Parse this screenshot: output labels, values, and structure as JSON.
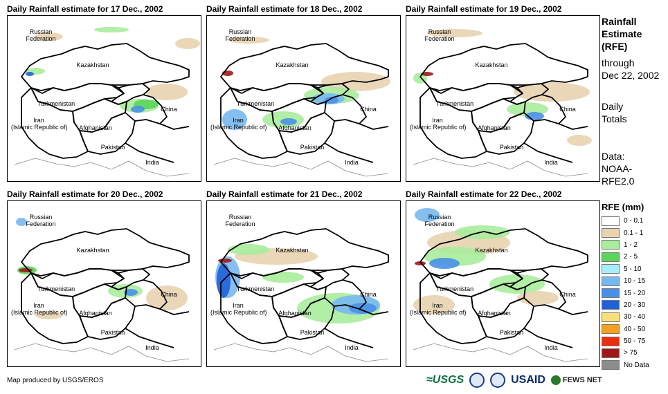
{
  "panels": [
    {
      "title": "Daily Rainfall estimate for 17 Dec., 2002"
    },
    {
      "title": "Daily Rainfall estimate for 18 Dec., 2002"
    },
    {
      "title": "Daily Rainfall estimate for 19 Dec., 2002"
    },
    {
      "title": "Daily Rainfall estimate for 20 Dec., 2002"
    },
    {
      "title": "Daily Rainfall estimate for 21 Dec., 2002"
    },
    {
      "title": "Daily Rainfall estimate for 22 Dec., 2002"
    }
  ],
  "map_labels": {
    "russia": "Russian\nFederation",
    "kazakhstan": "Kazakhstan",
    "turkmenistan": "Turkmenistan",
    "iran": "Iran\n(Islamic Republic of)",
    "afghanistan": "Afghanistan",
    "pakistan": "Pakistan",
    "china": "China",
    "india": "India"
  },
  "side": {
    "title_line1": "Rainfall",
    "title_line2": "Estimate",
    "title_line3": "(RFE)",
    "through": "through",
    "date": "Dec 22, 2002",
    "daily1": "Daily",
    "daily2": "Totals",
    "data1": "Data:",
    "data2": "NOAA-",
    "data3": "RFE2.0"
  },
  "legend": {
    "title": "RFE (mm)",
    "items": [
      {
        "label": "0 - 0.1",
        "color": "#ffffff"
      },
      {
        "label": "0.1 - 1",
        "color": "#e8d3b0"
      },
      {
        "label": "1 - 2",
        "color": "#a8ec9c"
      },
      {
        "label": "2 - 5",
        "color": "#5ad45a"
      },
      {
        "label": "5 - 10",
        "color": "#a8eef8"
      },
      {
        "label": "10 - 15",
        "color": "#78b8f0"
      },
      {
        "label": "15 - 20",
        "color": "#4a90e8"
      },
      {
        "label": "20 - 30",
        "color": "#2060d8"
      },
      {
        "label": "30 - 40",
        "color": "#f8e078"
      },
      {
        "label": "40 - 50",
        "color": "#f4a020"
      },
      {
        "label": "50 - 75",
        "color": "#e83010"
      },
      {
        "label": "> 75",
        "color": "#a01818"
      },
      {
        "label": "No Data",
        "color": "#8c8c8c"
      }
    ]
  },
  "credit": "Map produced by USGS/EROS",
  "logos": {
    "usgs": "≈USGS",
    "usaid": "USAID",
    "fews": "FEWS NET"
  }
}
